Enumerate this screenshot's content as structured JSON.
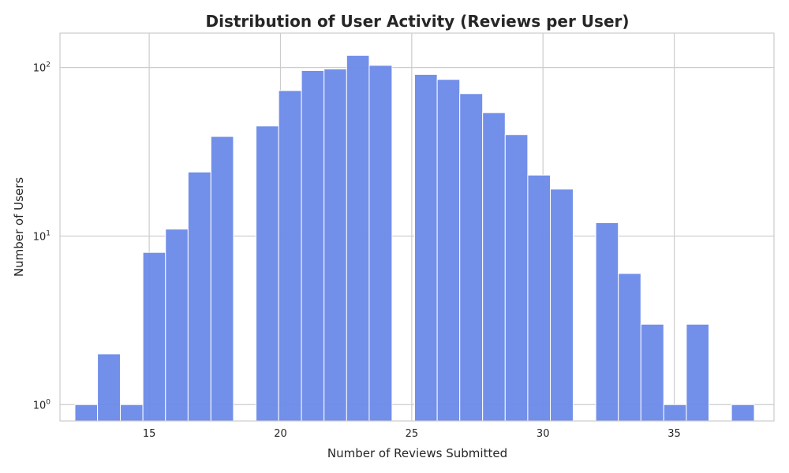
{
  "chart_data": {
    "type": "bar",
    "title": "Distribution of User Activity (Reviews per User)",
    "xlabel": "Number of Reviews Submitted",
    "ylabel": "Number of Users",
    "y_scale": "log",
    "grid": true,
    "bar_color": "#6a89e8",
    "xlim": [
      11.6,
      38.8
    ],
    "ylim": [
      0.8,
      160
    ],
    "x_ticks": [
      {
        "value": 15,
        "label": "15"
      },
      {
        "value": 20,
        "label": "20"
      },
      {
        "value": 25,
        "label": "25"
      },
      {
        "value": 30,
        "label": "30"
      },
      {
        "value": 35,
        "label": "35"
      }
    ],
    "y_ticks": [
      {
        "value": 1,
        "base": "10",
        "exp": "0"
      },
      {
        "value": 10,
        "base": "10",
        "exp": "1"
      },
      {
        "value": 100,
        "base": "10",
        "exp": "2"
      }
    ],
    "bins": [
      {
        "x0": 12.17,
        "x1": 13.03,
        "count": 1
      },
      {
        "x0": 13.03,
        "x1": 13.9,
        "count": 2
      },
      {
        "x0": 13.9,
        "x1": 14.76,
        "count": 1
      },
      {
        "x0": 14.76,
        "x1": 15.62,
        "count": 8
      },
      {
        "x0": 15.62,
        "x1": 16.48,
        "count": 11
      },
      {
        "x0": 16.48,
        "x1": 17.35,
        "count": 24
      },
      {
        "x0": 17.35,
        "x1": 18.21,
        "count": 39
      },
      {
        "x0": 19.07,
        "x1": 19.93,
        "count": 45
      },
      {
        "x0": 19.93,
        "x1": 20.8,
        "count": 73
      },
      {
        "x0": 20.8,
        "x1": 21.66,
        "count": 96
      },
      {
        "x0": 21.66,
        "x1": 22.52,
        "count": 98
      },
      {
        "x0": 22.52,
        "x1": 23.38,
        "count": 118
      },
      {
        "x0": 23.38,
        "x1": 24.25,
        "count": 103
      },
      {
        "x0": 25.11,
        "x1": 25.97,
        "count": 91
      },
      {
        "x0": 25.97,
        "x1": 26.83,
        "count": 85
      },
      {
        "x0": 26.83,
        "x1": 27.7,
        "count": 70
      },
      {
        "x0": 27.7,
        "x1": 28.56,
        "count": 54
      },
      {
        "x0": 28.56,
        "x1": 29.42,
        "count": 40
      },
      {
        "x0": 29.42,
        "x1": 30.28,
        "count": 23
      },
      {
        "x0": 30.28,
        "x1": 31.15,
        "count": 19
      },
      {
        "x0": 32.01,
        "x1": 32.87,
        "count": 12
      },
      {
        "x0": 32.87,
        "x1": 33.73,
        "count": 6
      },
      {
        "x0": 33.73,
        "x1": 34.6,
        "count": 3
      },
      {
        "x0": 34.6,
        "x1": 35.46,
        "count": 1
      },
      {
        "x0": 35.46,
        "x1": 36.32,
        "count": 3
      },
      {
        "x0": 37.18,
        "x1": 38.05,
        "count": 1
      }
    ]
  }
}
